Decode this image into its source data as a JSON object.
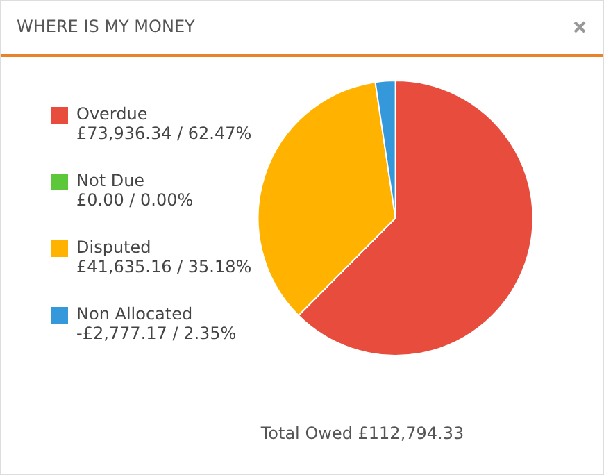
{
  "chart_data": {
    "type": "pie",
    "title": "WHERE IS MY MONEY",
    "categories": [
      "Overdue",
      "Not Due",
      "Disputed",
      "Non Allocated"
    ],
    "values": [
      62.47,
      0,
      35.18,
      2.35
    ],
    "value_labels": [
      "£73,936.34 / 62.47%",
      "£0.00 / 0.00%",
      "£41,635.16 / 35.18%",
      "-£2,777.17 / 2.35%"
    ],
    "colors": [
      "#e74c3c",
      "#5cc738",
      "#ffb300",
      "#3498db"
    ],
    "legend": "left",
    "annotations": [
      "Total Owed £112,794.33"
    ]
  }
}
